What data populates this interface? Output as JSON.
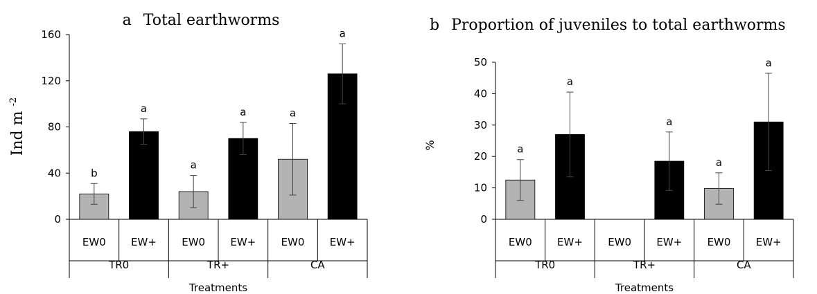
{
  "chart_data": [
    {
      "type": "bar",
      "panel_letter": "a",
      "title": "Total earthworms",
      "ylabel": "Ind m",
      "ylabel_sup": "-2",
      "xlabel": "Treatments",
      "ylim": [
        0,
        160
      ],
      "yticks": [
        0,
        40,
        80,
        120,
        160
      ],
      "groups": [
        "TR0",
        "TR+",
        "CA"
      ],
      "categories": [
        "EW0",
        "EW+",
        "EW0",
        "EW+",
        "EW0",
        "EW+"
      ],
      "series": [
        {
          "values": [
            22,
            76,
            24,
            70,
            52,
            126
          ],
          "errors": [
            9,
            11,
            14,
            14,
            31,
            26
          ],
          "sig": [
            "b",
            "a",
            "a",
            "a",
            "a",
            "a"
          ]
        }
      ],
      "grid": false,
      "colors": {
        "EW0": "#b3b3b3",
        "EW+": "#000000"
      }
    },
    {
      "type": "bar",
      "panel_letter": "b",
      "title": "Proportion of juveniles to total earthworms",
      "ylabel": "%",
      "xlabel": "Treatments",
      "ylim": [
        0,
        50
      ],
      "yticks": [
        0,
        10,
        20,
        30,
        40,
        50
      ],
      "groups": [
        "TR0",
        "TR+",
        "CA"
      ],
      "categories": [
        "EW0",
        "EW+",
        "EW0",
        "EW+",
        "EW0",
        "EW+"
      ],
      "series": [
        {
          "values": [
            12.5,
            27,
            null,
            18.5,
            9.8,
            31
          ],
          "errors": [
            6.5,
            13.5,
            null,
            9.3,
            5,
            15.5
          ],
          "sig": [
            "a",
            "a",
            "",
            "a",
            "a",
            "a"
          ]
        }
      ],
      "grid": false,
      "colors": {
        "EW0": "#b3b3b3",
        "EW+": "#000000"
      }
    }
  ]
}
